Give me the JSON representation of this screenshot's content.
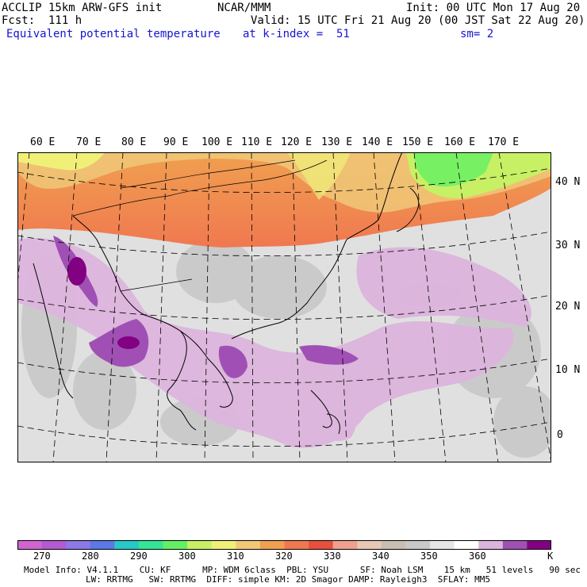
{
  "header": {
    "model": "ACCLIP 15km ARW-GFS init",
    "org": "NCAR/MMM",
    "init": "Init: 00 UTC Mon 17 Aug 20",
    "fcst": "Fcst:  111 h",
    "valid": "Valid: 15 UTC Fri 21 Aug 20 (00 JST Sat 22 Aug 20)",
    "field": "Equivalent potential temperature",
    "level": "at k-index =  51",
    "smooth": "sm= 2"
  },
  "map": {
    "lon_labels": [
      "60 E",
      "70 E",
      "80 E",
      "90 E",
      "100 E",
      "110 E",
      "120 E",
      "130 E",
      "140 E",
      "150 E",
      "160 E",
      "170 E"
    ],
    "lat_labels": [
      "40 N",
      "30 N",
      "20 N",
      "10 N",
      "0"
    ]
  },
  "colorbar": {
    "colors": [
      "#d264d2",
      "#b45ad2",
      "#8c78e6",
      "#5a78e6",
      "#28c8c8",
      "#32e696",
      "#64f064",
      "#c8f064",
      "#f0f078",
      "#f0c878",
      "#f0a050",
      "#f07850",
      "#e6503c",
      "#f0a08c",
      "#e6c8b4",
      "#c8beb4",
      "#c8c8c8",
      "#e6e6e6",
      "#ffffff",
      "#dcb4dc",
      "#a050b4",
      "#820082"
    ],
    "tick_labels": [
      "270",
      "280",
      "290",
      "300",
      "310",
      "320",
      "330",
      "340",
      "350",
      "360"
    ],
    "unit": "K"
  },
  "model_info": {
    "line1": "Model Info: V4.1.1    CU: KF      MP: WDM 6class  PBL: YSU      SF: Noah LSM    15 km   51 levels   90 sec",
    "line2": "LW: RRTMG   SW: RRTMG  DIFF: simple KM: 2D Smagor DAMP: Rayleigh3  SFLAY: MM5"
  }
}
